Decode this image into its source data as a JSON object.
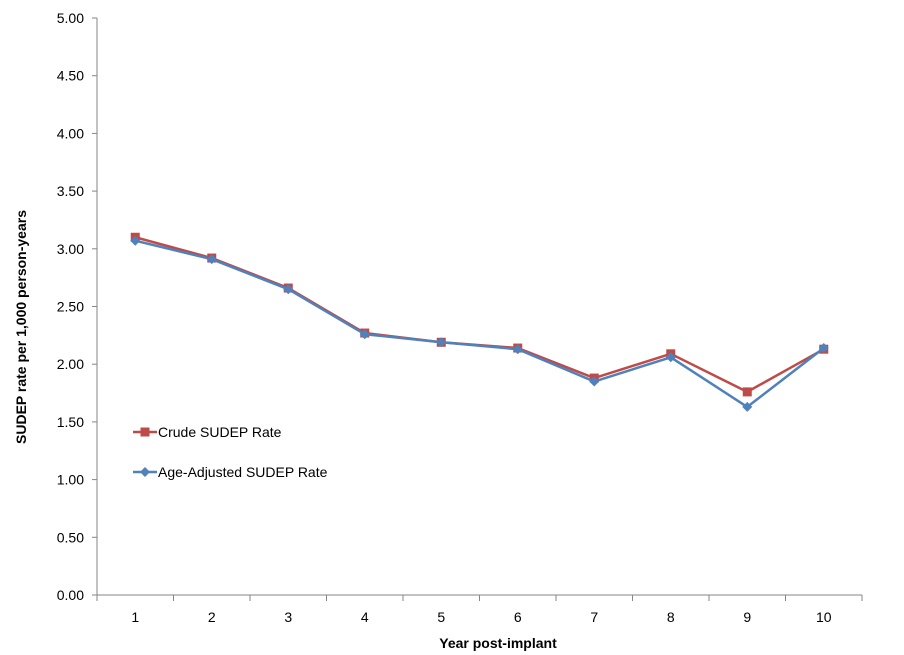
{
  "chart_data": {
    "type": "line",
    "title": "",
    "xlabel": "Year post-implant",
    "ylabel": "SUDEP rate per 1,000 person-years",
    "categories": [
      "1",
      "2",
      "3",
      "4",
      "5",
      "6",
      "7",
      "8",
      "9",
      "10"
    ],
    "ylim": [
      0,
      5
    ],
    "yticks": [
      "0.00",
      "0.50",
      "1.00",
      "1.50",
      "2.00",
      "2.50",
      "3.00",
      "3.50",
      "4.00",
      "4.50",
      "5.00"
    ],
    "grid": false,
    "legend_position": "left",
    "series": [
      {
        "name": "Crude SUDEP Rate",
        "color": "#BE4B48",
        "marker": "square",
        "values": [
          3.1,
          2.92,
          2.66,
          2.27,
          2.19,
          2.14,
          1.88,
          2.09,
          1.76,
          2.13
        ]
      },
      {
        "name": "Age-Adjusted SUDEP Rate",
        "color": "#4F81BD",
        "marker": "diamond",
        "values": [
          3.07,
          2.91,
          2.65,
          2.26,
          2.19,
          2.13,
          1.85,
          2.06,
          1.63,
          2.14
        ]
      }
    ]
  }
}
